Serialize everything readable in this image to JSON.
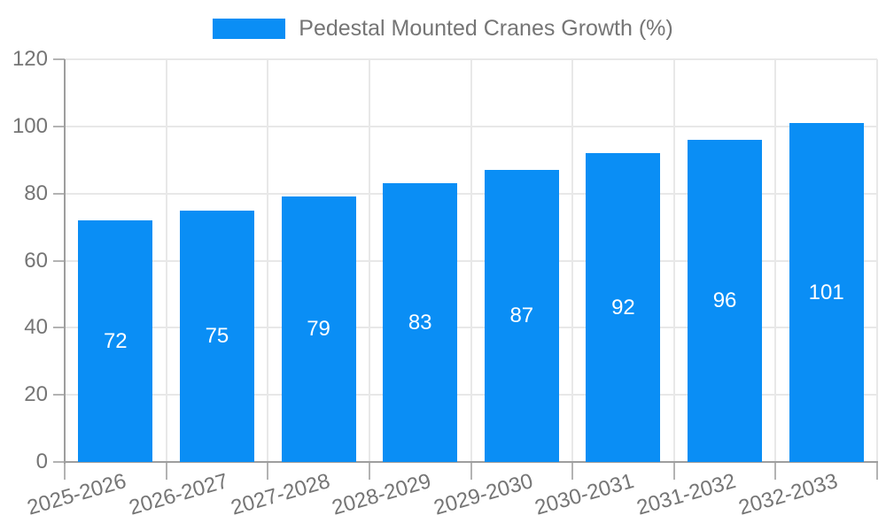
{
  "chart_data": {
    "type": "bar",
    "title": "Pedestal Mounted Cranes Growth (%)",
    "categories": [
      "2025-2026",
      "2026-2027",
      "2027-2028",
      "2028-2029",
      "2029-2030",
      "2030-2031",
      "2031-2032",
      "2032-2033"
    ],
    "values": [
      72,
      75,
      79,
      83,
      87,
      92,
      96,
      101
    ],
    "xlabel": "",
    "ylabel": "",
    "ylim": [
      0,
      120
    ],
    "yticks": [
      0,
      20,
      40,
      60,
      80,
      100,
      120
    ],
    "grid": true,
    "legend_position": "top-center",
    "value_labels": "inside-center"
  },
  "colors": {
    "bar": "#0a8ef5",
    "text": "#757575",
    "grid": "#e8e8e8",
    "tick": "#b3b3b3",
    "axis": "#9e9e9e",
    "value_label": "#ffffff",
    "background": "#ffffff"
  }
}
